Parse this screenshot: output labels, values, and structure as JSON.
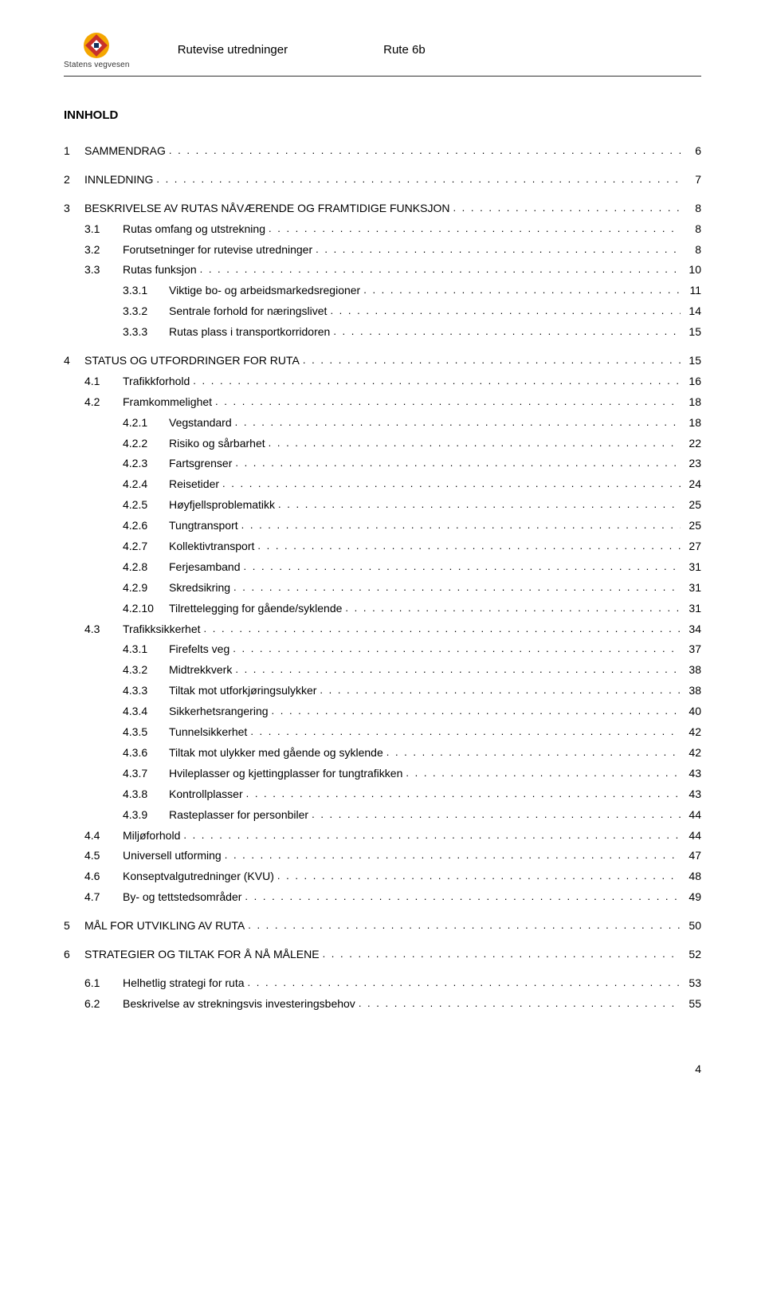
{
  "header": {
    "logo_text": "Statens vegvesen",
    "title_left": "Rutevise utredninger",
    "title_right": "Rute 6b",
    "logo_colors": {
      "yellow": "#f4a600",
      "red": "#c8312a",
      "navy": "#11325c"
    }
  },
  "toc_title": "INNHOLD",
  "page_number": "4",
  "toc": [
    {
      "level": 1,
      "num": "1",
      "label": "SAMMENDRAG",
      "page": "6",
      "gap": true
    },
    {
      "level": 1,
      "num": "2",
      "label": "INNLEDNING",
      "page": "7",
      "gap": true
    },
    {
      "level": 1,
      "num": "3",
      "label": "BESKRIVELSE AV RUTAS NÅVÆRENDE OG FRAMTIDIGE FUNKSJON",
      "page": "8",
      "gap": true
    },
    {
      "level": 2,
      "num": "3.1",
      "label": "Rutas omfang og utstrekning",
      "page": "8"
    },
    {
      "level": 2,
      "num": "3.2",
      "label": "Forutsetninger for rutevise utredninger",
      "page": "8"
    },
    {
      "level": 2,
      "num": "3.3",
      "label": "Rutas funksjon",
      "page": "10"
    },
    {
      "level": 3,
      "num": "3.3.1",
      "label": "Viktige bo- og arbeidsmarkedsregioner",
      "page": "11"
    },
    {
      "level": 3,
      "num": "3.3.2",
      "label": "Sentrale forhold for næringslivet",
      "page": "14"
    },
    {
      "level": 3,
      "num": "3.3.3",
      "label": "Rutas plass i transportkorridoren",
      "page": "15"
    },
    {
      "level": 1,
      "num": "4",
      "label": "STATUS OG UTFORDRINGER FOR RUTA",
      "page": "15",
      "gap": true
    },
    {
      "level": 2,
      "num": "4.1",
      "label": "Trafikkforhold",
      "page": "16"
    },
    {
      "level": 2,
      "num": "4.2",
      "label": "Framkommelighet",
      "page": "18"
    },
    {
      "level": 3,
      "num": "4.2.1",
      "label": "Vegstandard",
      "page": "18"
    },
    {
      "level": 3,
      "num": "4.2.2",
      "label": "Risiko og sårbarhet",
      "page": "22"
    },
    {
      "level": 3,
      "num": "4.2.3",
      "label": "Fartsgrenser",
      "page": "23"
    },
    {
      "level": 3,
      "num": "4.2.4",
      "label": "Reisetider",
      "page": "24"
    },
    {
      "level": 3,
      "num": "4.2.5",
      "label": "Høyfjellsproblematikk",
      "page": "25"
    },
    {
      "level": 3,
      "num": "4.2.6",
      "label": "Tungtransport",
      "page": "25"
    },
    {
      "level": 3,
      "num": "4.2.7",
      "label": "Kollektivtransport",
      "page": "27"
    },
    {
      "level": 3,
      "num": "4.2.8",
      "label": "Ferjesamband",
      "page": "31"
    },
    {
      "level": 3,
      "num": "4.2.9",
      "label": "Skredsikring",
      "page": "31"
    },
    {
      "level": 3,
      "num": "4.2.10",
      "label": "Tilrettelegging for gående/syklende",
      "page": "31"
    },
    {
      "level": 2,
      "num": "4.3",
      "label": "Trafikksikkerhet",
      "page": "34"
    },
    {
      "level": 3,
      "num": "4.3.1",
      "label": "Firefelts veg",
      "page": "37"
    },
    {
      "level": 3,
      "num": "4.3.2",
      "label": "Midtrekkverk",
      "page": "38"
    },
    {
      "level": 3,
      "num": "4.3.3",
      "label": "Tiltak mot utforkjøringsulykker",
      "page": "38"
    },
    {
      "level": 3,
      "num": "4.3.4",
      "label": "Sikkerhetsrangering",
      "page": "40"
    },
    {
      "level": 3,
      "num": "4.3.5",
      "label": "Tunnelsikkerhet",
      "page": "42"
    },
    {
      "level": 3,
      "num": "4.3.6",
      "label": "Tiltak mot ulykker med gående og syklende",
      "page": "42"
    },
    {
      "level": 3,
      "num": "4.3.7",
      "label": "Hvileplasser og kjettingplasser for tungtrafikken",
      "page": "43"
    },
    {
      "level": 3,
      "num": "4.3.8",
      "label": "Kontrollplasser",
      "page": "43"
    },
    {
      "level": 3,
      "num": "4.3.9",
      "label": "Rasteplasser for personbiler",
      "page": "44"
    },
    {
      "level": 2,
      "num": "4.4",
      "label": "Miljøforhold",
      "page": "44"
    },
    {
      "level": 2,
      "num": "4.5",
      "label": "Universell utforming",
      "page": "47"
    },
    {
      "level": 2,
      "num": "4.6",
      "label": "Konseptvalgutredninger (KVU)",
      "page": "48"
    },
    {
      "level": 2,
      "num": "4.7",
      "label": "By- og tettstedsområder",
      "page": "49"
    },
    {
      "level": 1,
      "num": "5",
      "label": "MÅL FOR UTVIKLING AV RUTA",
      "page": "50",
      "gap": true
    },
    {
      "level": 1,
      "num": "6",
      "label": "STRATEGIER OG TILTAK FOR Å NÅ MÅLENE",
      "page": "52",
      "gap": true
    },
    {
      "level": 2,
      "num": "6.1",
      "label": "Helhetlig strategi for ruta",
      "page": "53",
      "gap": true
    },
    {
      "level": 2,
      "num": "6.2",
      "label": "Beskrivelse av strekningsvis investeringsbehov",
      "page": "55"
    }
  ]
}
